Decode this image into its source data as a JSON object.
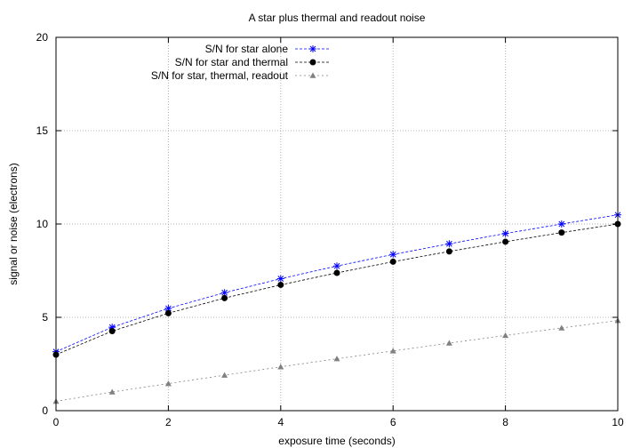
{
  "chart_data": {
    "type": "line",
    "title": "A star plus thermal and readout noise",
    "xlabel": "exposure time (seconds)",
    "ylabel": "signal or noise (electrons)",
    "xlim": [
      0,
      10
    ],
    "ylim": [
      0,
      20
    ],
    "xticks": [
      0,
      2,
      4,
      6,
      8,
      10
    ],
    "yticks": [
      0,
      5,
      10,
      15,
      20
    ],
    "grid": true,
    "legend_position": "top-left",
    "series": [
      {
        "name": "S/N for star alone",
        "marker": "asterisk",
        "color": "#0000ff",
        "x": [
          0,
          1,
          2,
          3,
          4,
          5,
          6,
          7,
          8,
          9,
          10
        ],
        "values": [
          3.16,
          4.47,
          5.48,
          6.32,
          7.07,
          7.75,
          8.37,
          8.94,
          9.49,
          10.0,
          10.49
        ]
      },
      {
        "name": "S/N for star and thermal",
        "marker": "circle",
        "color": "#000000",
        "x": [
          0,
          1,
          2,
          3,
          4,
          5,
          6,
          7,
          8,
          9,
          10
        ],
        "values": [
          3.0,
          4.26,
          5.22,
          6.03,
          6.74,
          7.38,
          7.98,
          8.53,
          9.05,
          9.54,
          10.0
        ]
      },
      {
        "name": "S/N for star, thermal, readout",
        "marker": "triangle",
        "color": "#808080",
        "x": [
          0,
          1,
          2,
          3,
          4,
          5,
          6,
          7,
          8,
          9,
          10
        ],
        "values": [
          0.5,
          1.0,
          1.45,
          1.9,
          2.35,
          2.78,
          3.2,
          3.62,
          4.03,
          4.43,
          4.83
        ]
      }
    ]
  }
}
